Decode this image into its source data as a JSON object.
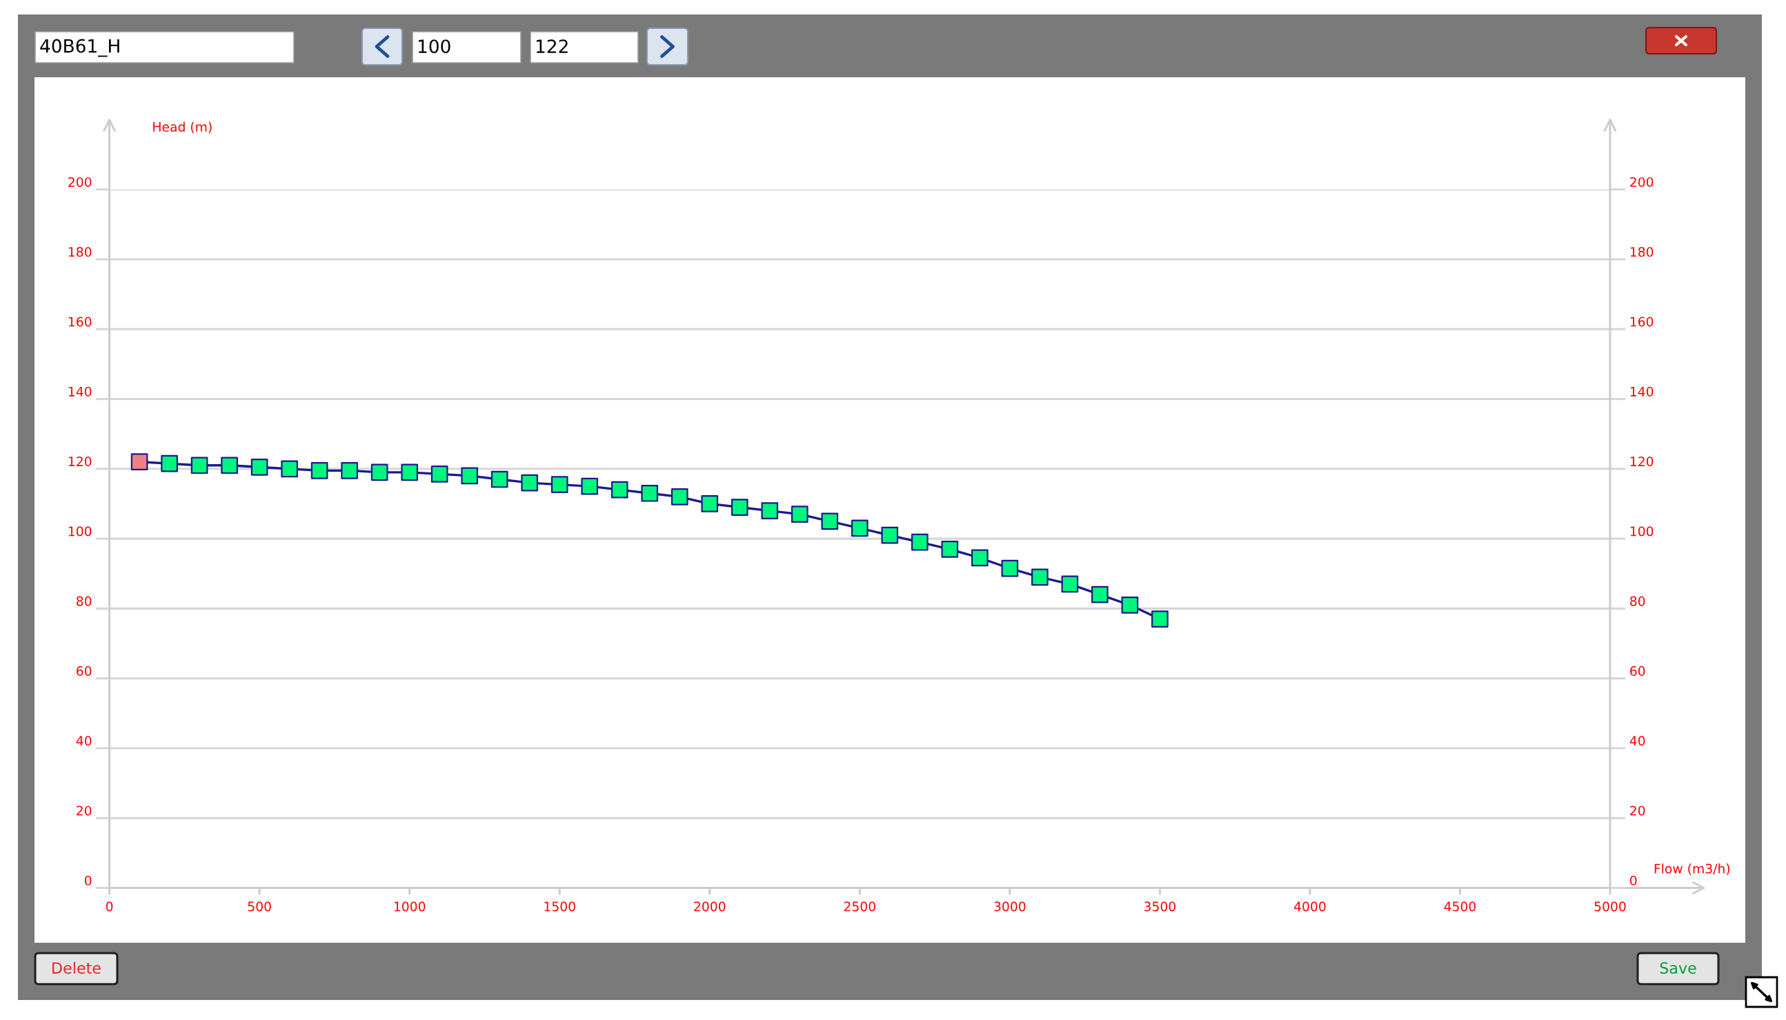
{
  "chart_data": {
    "type": "line",
    "xlabel": "Flow (m3/h)",
    "ylabel": "Head (m)",
    "x": [
      100,
      200,
      300,
      400,
      500,
      600,
      700,
      800,
      900,
      1000,
      1100,
      1200,
      1300,
      1400,
      1500,
      1600,
      1700,
      1800,
      1900,
      2000,
      2100,
      2200,
      2300,
      2400,
      2500,
      2600,
      2700,
      2800,
      2900,
      3000,
      3100,
      3200,
      3300,
      3400,
      3500
    ],
    "series": [
      {
        "color": "#1a1a8c",
        "colors": [
          "#f08080",
          "#00f57f",
          "#00f57f",
          "#00f57f",
          "#00f57f",
          "#00f57f",
          "#00f57f",
          "#00f57f",
          "#00f57f",
          "#00f57f",
          "#00f57f",
          "#00f57f",
          "#00f57f",
          "#00f57f",
          "#00f57f",
          "#00f57f",
          "#00f57f",
          "#00f57f",
          "#00f57f",
          "#00f57f",
          "#00f57f",
          "#00f57f",
          "#00f57f",
          "#00f57f",
          "#00f57f",
          "#00f57f",
          "#00f57f",
          "#00f57f",
          "#00f57f",
          "#00f57f",
          "#00f57f",
          "#00f57f",
          "#00f57f",
          "#00f57f",
          "#00f57f"
        ],
        "values": [
          122,
          121.5,
          121,
          121,
          120.5,
          120,
          119.5,
          119.5,
          119,
          119,
          118.5,
          118,
          117,
          116,
          115.5,
          115,
          114,
          113,
          112,
          110,
          109,
          108,
          107,
          105,
          103,
          101,
          99,
          97,
          94.5,
          91.5,
          89,
          87,
          84,
          81,
          77
        ]
      }
    ],
    "xlim": [
      0,
      5000
    ],
    "xticks": [
      0,
      500,
      1000,
      1500,
      2000,
      2500,
      3000,
      3500,
      4000,
      4500,
      5000
    ],
    "ylim": [
      0,
      200
    ],
    "yticks": [
      0,
      20,
      40,
      60,
      80,
      100,
      120,
      140,
      160,
      180,
      200
    ],
    "y2lim": [
      0,
      200
    ],
    "y2ticks": [
      0,
      20,
      40,
      60,
      80,
      100,
      120,
      140,
      160,
      180,
      200
    ],
    "grid": "y",
    "marker": "square",
    "line_style": "solid",
    "annotations": [
      "40B61_H",
      "100",
      "122",
      "Delete",
      "Save"
    ]
  }
}
